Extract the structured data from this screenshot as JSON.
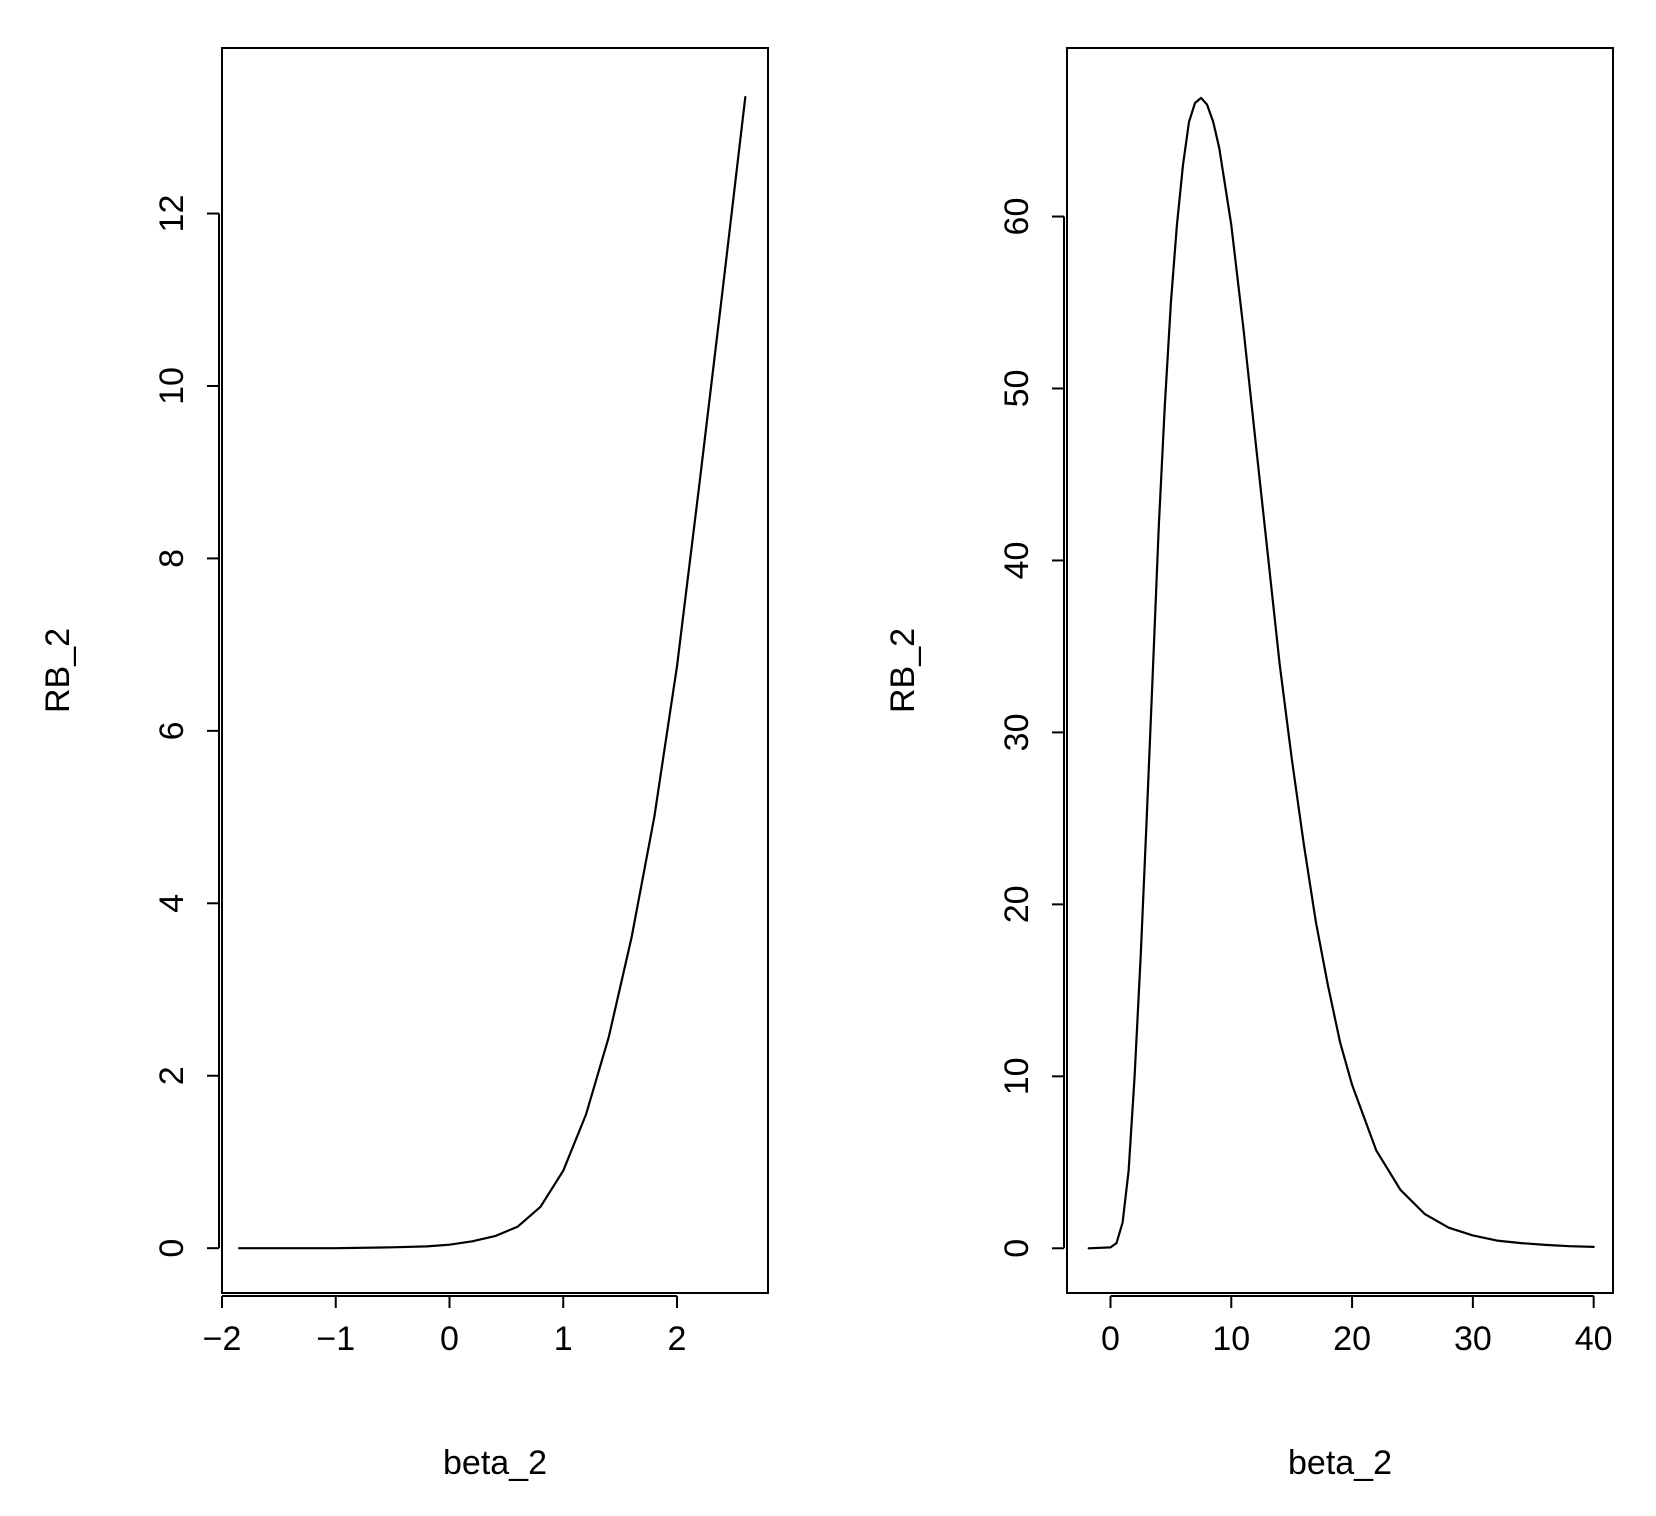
{
  "chart_data": [
    {
      "type": "line",
      "title": "",
      "xlabel": "beta_2",
      "ylabel": "RB_2",
      "xlim": [
        -2.0,
        2.8
      ],
      "ylim": [
        -0.52,
        13.92
      ],
      "xticks": [
        -2,
        -1,
        0,
        1,
        2
      ],
      "xtick_labels": [
        "−2",
        "−1",
        "0",
        "1",
        "2"
      ],
      "yticks": [
        0,
        2,
        4,
        6,
        8,
        10,
        12
      ],
      "ytick_labels": [
        "0",
        "2",
        "4",
        "6",
        "8",
        "10",
        "12"
      ],
      "grid": false,
      "legend": "none",
      "line_color": "#000000",
      "series": [
        {
          "x": [
            -1.85,
            -1.5,
            -1.0,
            -0.5,
            -0.2,
            0.0,
            0.2,
            0.4,
            0.6,
            0.8,
            1.0,
            1.2,
            1.4,
            1.6,
            1.8,
            2.0,
            2.2,
            2.4,
            2.6
          ],
          "y": [
            0.0,
            0.0,
            0.0,
            0.01,
            0.02,
            0.04,
            0.08,
            0.14,
            0.25,
            0.48,
            0.9,
            1.55,
            2.45,
            3.6,
            5.0,
            6.75,
            8.9,
            11.1,
            13.35
          ]
        }
      ]
    },
    {
      "type": "line",
      "title": "",
      "xlabel": "beta_2",
      "ylabel": "RB_2",
      "xlim": [
        -3.6,
        41.6
      ],
      "ylim": [
        -2.6,
        69.8
      ],
      "xticks": [
        0,
        10,
        20,
        30,
        40
      ],
      "xtick_labels": [
        "0",
        "10",
        "20",
        "30",
        "40"
      ],
      "yticks": [
        0,
        10,
        20,
        30,
        40,
        50,
        60
      ],
      "ytick_labels": [
        "0",
        "10",
        "20",
        "30",
        "40",
        "50",
        "60"
      ],
      "grid": false,
      "legend": "none",
      "line_color": "#000000",
      "series": [
        {
          "x": [
            -1.8,
            0.0,
            0.5,
            1.0,
            1.5,
            2.0,
            2.5,
            3.0,
            3.5,
            4.0,
            4.5,
            5.0,
            5.5,
            6.0,
            6.5,
            7.0,
            7.5,
            8.0,
            8.5,
            9.0,
            10.0,
            11.0,
            12.0,
            13.0,
            14.0,
            15.0,
            16.0,
            17.0,
            18.0,
            19.0,
            20.0,
            22.0,
            24.0,
            26.0,
            28.0,
            30.0,
            32.0,
            34.0,
            36.0,
            38.0,
            40.0
          ],
          "y": [
            0.0,
            0.05,
            0.3,
            1.5,
            4.5,
            10.0,
            17.0,
            25.0,
            33.5,
            42.0,
            49.0,
            55.0,
            59.5,
            63.0,
            65.5,
            66.6,
            66.9,
            66.5,
            65.5,
            64.0,
            59.5,
            53.5,
            47.0,
            40.5,
            34.0,
            28.5,
            23.5,
            19.0,
            15.3,
            12.0,
            9.5,
            5.7,
            3.4,
            2.0,
            1.2,
            0.75,
            0.45,
            0.3,
            0.2,
            0.12,
            0.08
          ]
        }
      ]
    }
  ]
}
